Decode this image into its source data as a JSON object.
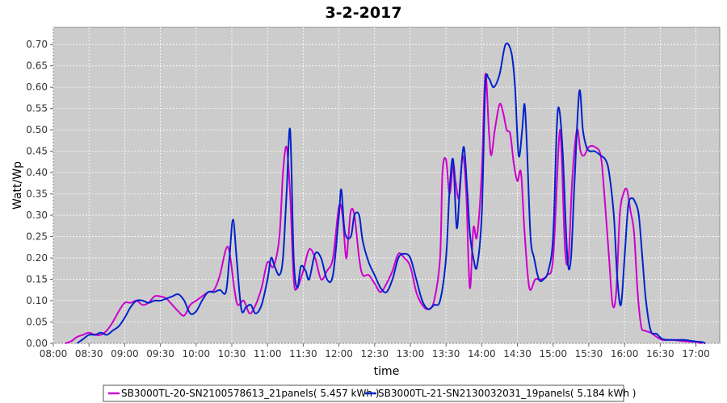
{
  "chart_data": {
    "type": "line",
    "title": "3-2-2017",
    "xlabel": "time",
    "ylabel": "Watt/Wp",
    "xlim": [
      "08:00",
      "17:20"
    ],
    "ylim": [
      0,
      0.74
    ],
    "x_ticks": [
      "08:00",
      "08:30",
      "09:00",
      "09:30",
      "10:00",
      "10:30",
      "11:00",
      "11:30",
      "12:00",
      "12:30",
      "13:00",
      "13:30",
      "14:00",
      "14:30",
      "15:00",
      "15:30",
      "16:00",
      "16:30",
      "17:00"
    ],
    "y_ticks": [
      "0.00",
      "0.05",
      "0.10",
      "0.15",
      "0.20",
      "0.25",
      "0.30",
      "0.35",
      "0.40",
      "0.45",
      "0.50",
      "0.55",
      "0.60",
      "0.65",
      "0.70"
    ],
    "grid": true,
    "legend_position": "bottom",
    "plot_background": "#cccccc",
    "series": [
      {
        "name": "SB3000TL-20-SN2100578613_21panels( 5.457 kWh )",
        "color": "#cc00cc",
        "points": [
          [
            "08:10",
            0.0
          ],
          [
            "08:15",
            0.005
          ],
          [
            "08:20",
            0.015
          ],
          [
            "08:25",
            0.02
          ],
          [
            "08:30",
            0.025
          ],
          [
            "08:35",
            0.02
          ],
          [
            "08:40",
            0.02
          ],
          [
            "08:45",
            0.03
          ],
          [
            "08:50",
            0.05
          ],
          [
            "08:55",
            0.075
          ],
          [
            "09:00",
            0.095
          ],
          [
            "09:05",
            0.095
          ],
          [
            "09:10",
            0.1
          ],
          [
            "09:15",
            0.09
          ],
          [
            "09:20",
            0.095
          ],
          [
            "09:25",
            0.11
          ],
          [
            "09:30",
            0.11
          ],
          [
            "09:35",
            0.105
          ],
          [
            "09:40",
            0.09
          ],
          [
            "09:45",
            0.075
          ],
          [
            "09:50",
            0.065
          ],
          [
            "09:55",
            0.09
          ],
          [
            "10:00",
            0.1
          ],
          [
            "10:05",
            0.11
          ],
          [
            "10:10",
            0.12
          ],
          [
            "10:15",
            0.125
          ],
          [
            "10:20",
            0.16
          ],
          [
            "10:25",
            0.22
          ],
          [
            "10:28",
            0.215
          ],
          [
            "10:32",
            0.13
          ],
          [
            "10:35",
            0.09
          ],
          [
            "10:40",
            0.1
          ],
          [
            "10:45",
            0.07
          ],
          [
            "10:50",
            0.09
          ],
          [
            "10:55",
            0.13
          ],
          [
            "11:00",
            0.19
          ],
          [
            "11:05",
            0.18
          ],
          [
            "11:10",
            0.25
          ],
          [
            "11:13",
            0.4
          ],
          [
            "11:16",
            0.46
          ],
          [
            "11:19",
            0.35
          ],
          [
            "11:22",
            0.15
          ],
          [
            "11:25",
            0.13
          ],
          [
            "11:30",
            0.17
          ],
          [
            "11:35",
            0.22
          ],
          [
            "11:40",
            0.2
          ],
          [
            "11:45",
            0.15
          ],
          [
            "11:50",
            0.17
          ],
          [
            "11:55",
            0.2
          ],
          [
            "12:00",
            0.32
          ],
          [
            "12:03",
            0.3
          ],
          [
            "12:06",
            0.2
          ],
          [
            "12:08",
            0.25
          ],
          [
            "12:10",
            0.31
          ],
          [
            "12:13",
            0.3
          ],
          [
            "12:17",
            0.2
          ],
          [
            "12:20",
            0.16
          ],
          [
            "12:25",
            0.16
          ],
          [
            "12:30",
            0.14
          ],
          [
            "12:35",
            0.12
          ],
          [
            "12:40",
            0.14
          ],
          [
            "12:45",
            0.17
          ],
          [
            "12:50",
            0.21
          ],
          [
            "12:55",
            0.2
          ],
          [
            "13:00",
            0.18
          ],
          [
            "13:05",
            0.12
          ],
          [
            "13:10",
            0.09
          ],
          [
            "13:15",
            0.08
          ],
          [
            "13:20",
            0.1
          ],
          [
            "13:25",
            0.2
          ],
          [
            "13:27",
            0.4
          ],
          [
            "13:30",
            0.43
          ],
          [
            "13:33",
            0.35
          ],
          [
            "13:36",
            0.42
          ],
          [
            "13:38",
            0.38
          ],
          [
            "13:41",
            0.34
          ],
          [
            "13:44",
            0.44
          ],
          [
            "13:47",
            0.35
          ],
          [
            "13:50",
            0.13
          ],
          [
            "13:53",
            0.27
          ],
          [
            "13:56",
            0.25
          ],
          [
            "14:00",
            0.4
          ],
          [
            "14:03",
            0.63
          ],
          [
            "14:06",
            0.5
          ],
          [
            "14:08",
            0.44
          ],
          [
            "14:11",
            0.5
          ],
          [
            "14:15",
            0.56
          ],
          [
            "14:18",
            0.54
          ],
          [
            "14:21",
            0.5
          ],
          [
            "14:24",
            0.49
          ],
          [
            "14:27",
            0.42
          ],
          [
            "14:30",
            0.38
          ],
          [
            "14:33",
            0.4
          ],
          [
            "14:36",
            0.26
          ],
          [
            "14:40",
            0.13
          ],
          [
            "14:45",
            0.15
          ],
          [
            "14:50",
            0.15
          ],
          [
            "14:55",
            0.16
          ],
          [
            "15:00",
            0.2
          ],
          [
            "15:05",
            0.48
          ],
          [
            "15:07",
            0.45
          ],
          [
            "15:10",
            0.22
          ],
          [
            "15:13",
            0.2
          ],
          [
            "15:16",
            0.38
          ],
          [
            "15:20",
            0.5
          ],
          [
            "15:23",
            0.45
          ],
          [
            "15:26",
            0.44
          ],
          [
            "15:30",
            0.46
          ],
          [
            "15:35",
            0.46
          ],
          [
            "15:40",
            0.44
          ],
          [
            "15:43",
            0.35
          ],
          [
            "15:47",
            0.2
          ],
          [
            "15:50",
            0.09
          ],
          [
            "15:53",
            0.12
          ],
          [
            "15:56",
            0.3
          ],
          [
            "15:59",
            0.35
          ],
          [
            "16:02",
            0.36
          ],
          [
            "16:05",
            0.31
          ],
          [
            "16:08",
            0.26
          ],
          [
            "16:11",
            0.12
          ],
          [
            "16:14",
            0.04
          ],
          [
            "16:17",
            0.03
          ],
          [
            "16:22",
            0.025
          ],
          [
            "16:27",
            0.015
          ],
          [
            "16:32",
            0.008
          ],
          [
            "16:40",
            0.008
          ],
          [
            "16:50",
            0.005
          ],
          [
            "17:00",
            0.003
          ],
          [
            "17:05",
            0.0
          ]
        ]
      },
      {
        "name": "SB3000TL-21-SN2130032031_19panels( 5.184 kWh )",
        "color": "#0022cc",
        "points": [
          [
            "08:20",
            0.0
          ],
          [
            "08:25",
            0.01
          ],
          [
            "08:30",
            0.02
          ],
          [
            "08:35",
            0.02
          ],
          [
            "08:40",
            0.025
          ],
          [
            "08:45",
            0.02
          ],
          [
            "08:50",
            0.03
          ],
          [
            "08:55",
            0.04
          ],
          [
            "09:00",
            0.06
          ],
          [
            "09:05",
            0.085
          ],
          [
            "09:10",
            0.1
          ],
          [
            "09:15",
            0.1
          ],
          [
            "09:20",
            0.095
          ],
          [
            "09:25",
            0.1
          ],
          [
            "09:30",
            0.1
          ],
          [
            "09:35",
            0.105
          ],
          [
            "09:40",
            0.11
          ],
          [
            "09:45",
            0.115
          ],
          [
            "09:50",
            0.1
          ],
          [
            "09:55",
            0.07
          ],
          [
            "10:00",
            0.075
          ],
          [
            "10:05",
            0.1
          ],
          [
            "10:10",
            0.12
          ],
          [
            "10:15",
            0.12
          ],
          [
            "10:20",
            0.125
          ],
          [
            "10:25",
            0.12
          ],
          [
            "10:28",
            0.2
          ],
          [
            "10:31",
            0.29
          ],
          [
            "10:34",
            0.2
          ],
          [
            "10:38",
            0.08
          ],
          [
            "10:42",
            0.085
          ],
          [
            "10:46",
            0.09
          ],
          [
            "10:50",
            0.07
          ],
          [
            "10:55",
            0.09
          ],
          [
            "11:00",
            0.15
          ],
          [
            "11:03",
            0.2
          ],
          [
            "11:06",
            0.18
          ],
          [
            "11:10",
            0.16
          ],
          [
            "11:13",
            0.2
          ],
          [
            "11:16",
            0.35
          ],
          [
            "11:19",
            0.5
          ],
          [
            "11:22",
            0.2
          ],
          [
            "11:25",
            0.13
          ],
          [
            "11:28",
            0.18
          ],
          [
            "11:32",
            0.17
          ],
          [
            "11:35",
            0.15
          ],
          [
            "11:40",
            0.21
          ],
          [
            "11:45",
            0.2
          ],
          [
            "11:50",
            0.15
          ],
          [
            "11:55",
            0.16
          ],
          [
            "12:00",
            0.3
          ],
          [
            "12:02",
            0.36
          ],
          [
            "12:05",
            0.26
          ],
          [
            "12:10",
            0.25
          ],
          [
            "12:13",
            0.3
          ],
          [
            "12:17",
            0.3
          ],
          [
            "12:20",
            0.24
          ],
          [
            "12:25",
            0.19
          ],
          [
            "12:30",
            0.16
          ],
          [
            "12:35",
            0.13
          ],
          [
            "12:40",
            0.12
          ],
          [
            "12:45",
            0.15
          ],
          [
            "12:50",
            0.2
          ],
          [
            "12:55",
            0.21
          ],
          [
            "13:00",
            0.2
          ],
          [
            "13:05",
            0.15
          ],
          [
            "13:10",
            0.1
          ],
          [
            "13:15",
            0.08
          ],
          [
            "13:20",
            0.09
          ],
          [
            "13:25",
            0.1
          ],
          [
            "13:30",
            0.2
          ],
          [
            "13:33",
            0.36
          ],
          [
            "13:36",
            0.43
          ],
          [
            "13:39",
            0.27
          ],
          [
            "13:42",
            0.38
          ],
          [
            "13:45",
            0.46
          ],
          [
            "13:48",
            0.35
          ],
          [
            "13:50",
            0.26
          ],
          [
            "13:53",
            0.2
          ],
          [
            "13:56",
            0.18
          ],
          [
            "14:00",
            0.3
          ],
          [
            "14:03",
            0.6
          ],
          [
            "14:06",
            0.62
          ],
          [
            "14:10",
            0.6
          ],
          [
            "14:15",
            0.63
          ],
          [
            "14:20",
            0.7
          ],
          [
            "14:25",
            0.68
          ],
          [
            "14:28",
            0.6
          ],
          [
            "14:31",
            0.44
          ],
          [
            "14:34",
            0.5
          ],
          [
            "14:36",
            0.56
          ],
          [
            "14:38",
            0.46
          ],
          [
            "14:41",
            0.25
          ],
          [
            "14:44",
            0.2
          ],
          [
            "14:48",
            0.15
          ],
          [
            "14:52",
            0.15
          ],
          [
            "14:56",
            0.17
          ],
          [
            "15:00",
            0.25
          ],
          [
            "15:03",
            0.5
          ],
          [
            "15:05",
            0.55
          ],
          [
            "15:08",
            0.45
          ],
          [
            "15:12",
            0.2
          ],
          [
            "15:15",
            0.2
          ],
          [
            "15:18",
            0.38
          ],
          [
            "15:22",
            0.59
          ],
          [
            "15:25",
            0.5
          ],
          [
            "15:28",
            0.46
          ],
          [
            "15:31",
            0.45
          ],
          [
            "15:35",
            0.45
          ],
          [
            "15:40",
            0.44
          ],
          [
            "15:44",
            0.43
          ],
          [
            "15:47",
            0.4
          ],
          [
            "15:51",
            0.3
          ],
          [
            "15:54",
            0.15
          ],
          [
            "15:57",
            0.09
          ],
          [
            "16:00",
            0.2
          ],
          [
            "16:03",
            0.32
          ],
          [
            "16:06",
            0.34
          ],
          [
            "16:09",
            0.33
          ],
          [
            "16:12",
            0.3
          ],
          [
            "16:15",
            0.2
          ],
          [
            "16:18",
            0.1
          ],
          [
            "16:22",
            0.03
          ],
          [
            "16:27",
            0.022
          ],
          [
            "16:32",
            0.01
          ],
          [
            "16:40",
            0.008
          ],
          [
            "16:50",
            0.008
          ],
          [
            "16:58",
            0.005
          ],
          [
            "17:05",
            0.003
          ],
          [
            "17:08",
            0.0
          ]
        ]
      }
    ]
  }
}
